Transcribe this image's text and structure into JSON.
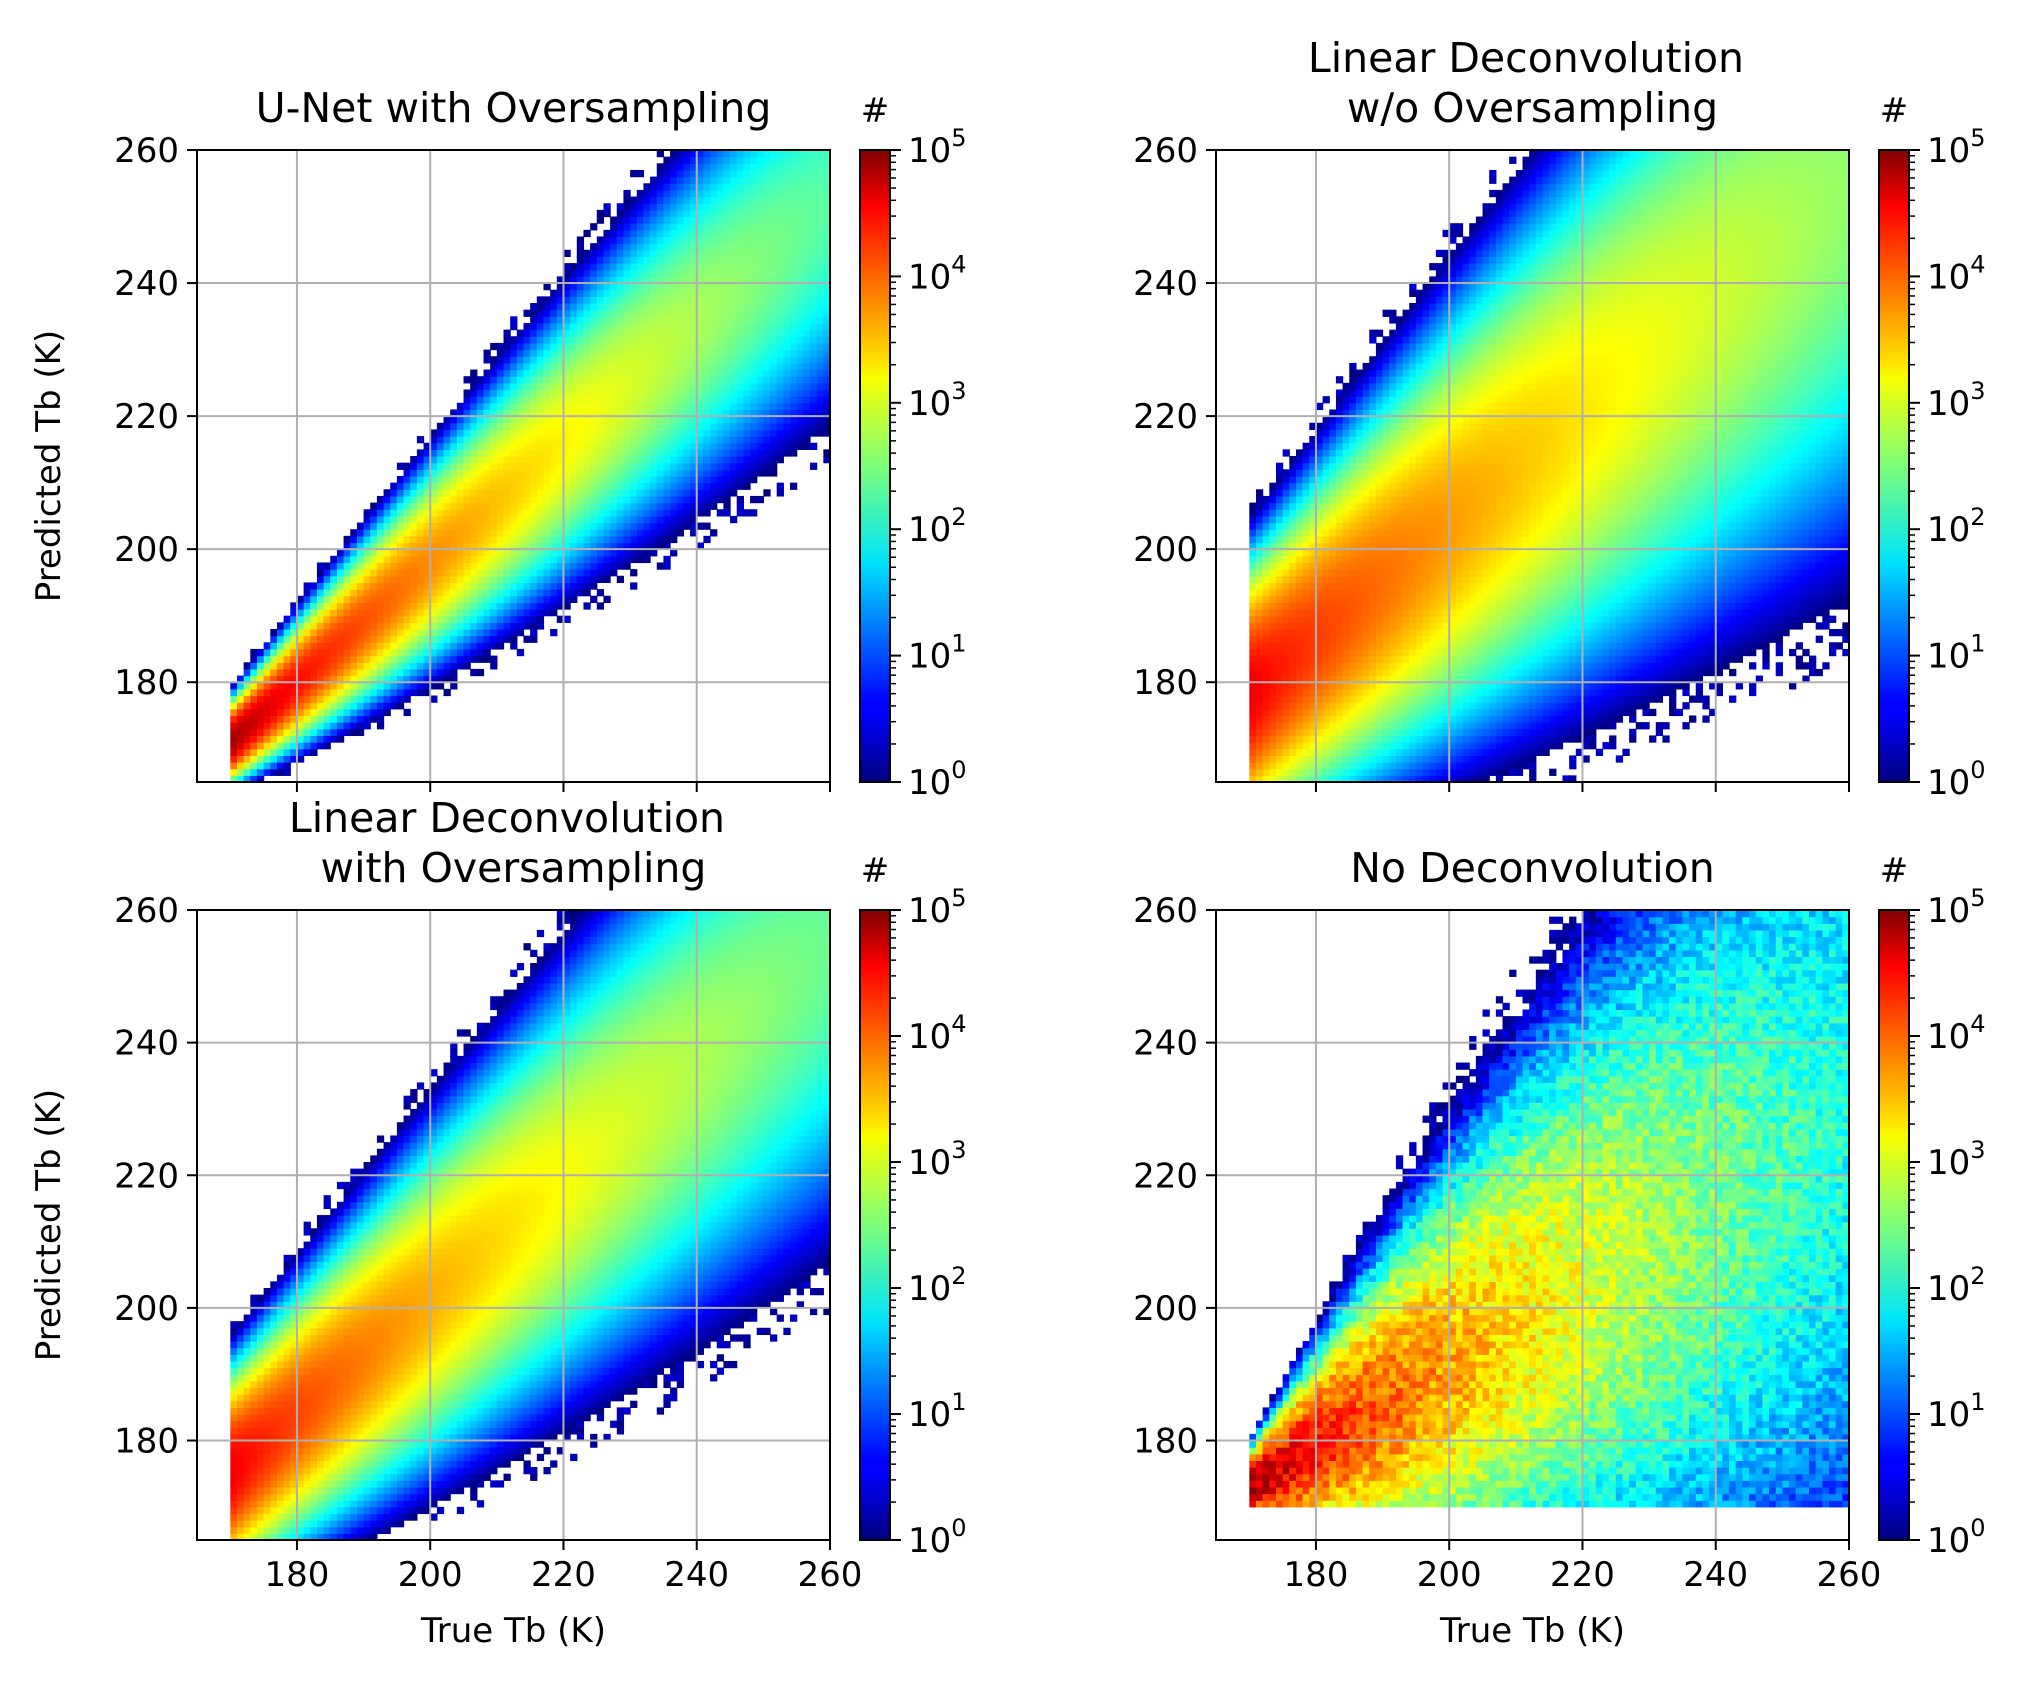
{
  "figure": {
    "colorbar_label": "#",
    "colorbar_ticks": [
      {
        "base": "10",
        "exp": "0",
        "value": 1
      },
      {
        "base": "10",
        "exp": "1",
        "value": 10
      },
      {
        "base": "10",
        "exp": "2",
        "value": 100
      },
      {
        "base": "10",
        "exp": "3",
        "value": 1000
      },
      {
        "base": "10",
        "exp": "4",
        "value": 10000
      },
      {
        "base": "10",
        "exp": "5",
        "value": 100000
      }
    ],
    "colormap": "jet",
    "colors": {
      "grid": "#b0b0b0",
      "axis": "#000000",
      "background": "#ffffff"
    }
  },
  "chart_data": [
    {
      "type": "heatmap",
      "title_lines": [
        "U-Net with Oversampling"
      ],
      "xlabel": "",
      "ylabel": "Predicted Tb (K)",
      "xlim": [
        165,
        260
      ],
      "ylim": [
        165,
        260
      ],
      "xticks": [
        180,
        200,
        220,
        240,
        260
      ],
      "yticks": [
        180,
        200,
        220,
        240,
        260
      ],
      "show_xticklabels": false,
      "grid": true,
      "color_scale": "log",
      "clim": [
        1,
        100000
      ],
      "density_model": {
        "x_min": 170,
        "y_min": 165,
        "slope": 0.9,
        "y_at_xmin": 171,
        "spread_base": 2.2,
        "spread_growth": 0.12,
        "peak_log10": 4.9,
        "floor_log10": 2.3,
        "spread_factor": 3.2,
        "noise": 0.0
      }
    },
    {
      "type": "heatmap",
      "title_lines": [
        "Linear Deconvolution",
        "w/o Oversampling"
      ],
      "xlabel": "",
      "ylabel": "",
      "xlim": [
        165,
        260
      ],
      "ylim": [
        165,
        260
      ],
      "xticks": [
        180,
        200,
        220,
        240,
        260
      ],
      "yticks": [
        180,
        200,
        220,
        240,
        260
      ],
      "show_xticklabels": false,
      "grid": true,
      "color_scale": "log",
      "clim": [
        1,
        100000
      ],
      "density_model": {
        "x_min": 170,
        "y_min": 165,
        "slope": 0.85,
        "y_at_xmin": 178,
        "spread_base": 8.0,
        "spread_growth": 0.18,
        "peak_log10": 4.5,
        "floor_log10": 2.6,
        "spread_factor": 2.8,
        "noise": 0.0
      }
    },
    {
      "type": "heatmap",
      "title_lines": [
        "Linear Deconvolution",
        "with Oversampling"
      ],
      "xlabel": "True Tb (K)",
      "ylabel": "Predicted Tb (K)",
      "xlim": [
        165,
        260
      ],
      "ylim": [
        165,
        260
      ],
      "xticks": [
        180,
        200,
        220,
        240,
        260
      ],
      "yticks": [
        180,
        200,
        220,
        240,
        260
      ],
      "show_xticklabels": true,
      "grid": true,
      "color_scale": "log",
      "clim": [
        1,
        100000
      ],
      "density_model": {
        "x_min": 170,
        "y_min": 165,
        "slope": 0.88,
        "y_at_xmin": 175,
        "spread_base": 6.0,
        "spread_growth": 0.14,
        "peak_log10": 4.5,
        "floor_log10": 2.4,
        "spread_factor": 3.0,
        "noise": 0.0
      }
    },
    {
      "type": "heatmap",
      "title_lines": [
        "No Deconvolution"
      ],
      "xlabel": "True Tb (K)",
      "ylabel": "",
      "xlim": [
        165,
        260
      ],
      "ylim": [
        165,
        260
      ],
      "xticks": [
        180,
        200,
        220,
        240,
        260
      ],
      "yticks": [
        180,
        200,
        220,
        240,
        260
      ],
      "show_xticklabels": true,
      "grid": true,
      "color_scale": "log",
      "clim": [
        1,
        100000
      ],
      "density_model": {
        "x_min": 170,
        "y_min": 170,
        "slope": 0.62,
        "y_at_xmin": 173,
        "spread_base": 2.0,
        "spread_growth": 0.35,
        "peak_log10": 4.9,
        "floor_log10": 2.0,
        "spread_factor": 3.0,
        "noise": 0.35
      }
    }
  ]
}
